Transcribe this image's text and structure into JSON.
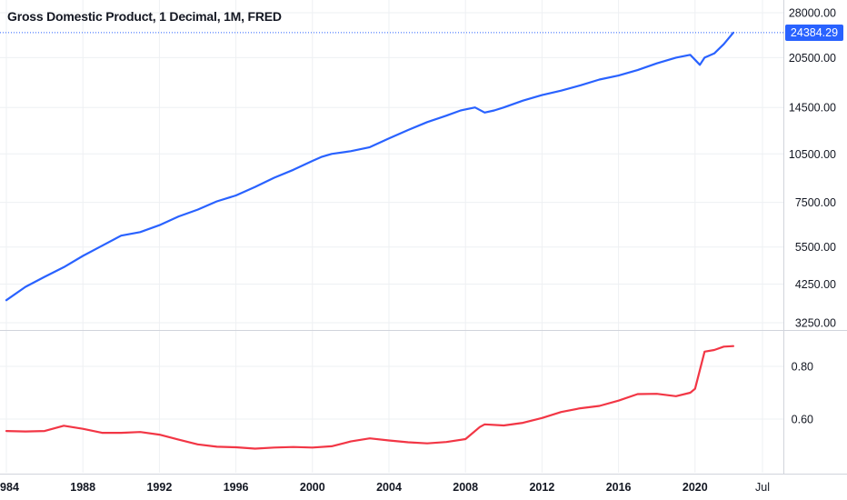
{
  "title": "Gross Domestic Product, 1 Decimal, 1M, FRED",
  "last_value_label": "24384.29",
  "colors": {
    "gdp_line": "#2962ff",
    "ratio_line": "#f23645",
    "grid": "#eef0f3",
    "axis_border": "#d1d4dc",
    "last_value_badge": "#2962ff"
  },
  "chart_data": [
    {
      "type": "line",
      "title": "Gross Domestic Product, 1 Decimal, 1M, FRED",
      "y_scale": "log",
      "ylim": [
        3100,
        30000
      ],
      "y_ticks": [
        "28000.00",
        "20500.00",
        "14500.00",
        "10500.00",
        "7500.00",
        "5500.00",
        "4250.00",
        "3250.00"
      ],
      "x_ticks": [
        "1984",
        "1988",
        "1992",
        "1996",
        "2000",
        "2004",
        "2008",
        "2012",
        "2016",
        "2020",
        "Jul"
      ],
      "xlim": [
        1984.0,
        2025.0
      ],
      "grid": true,
      "series": [
        {
          "x": [
            1984.0,
            1985.0,
            1986.0,
            1987.0,
            1988.0,
            1989.0,
            1990.0,
            1991.0,
            1992.0,
            1993.0,
            1994.0,
            1995.0,
            1996.0,
            1997.0,
            1998.0,
            1999.0,
            2000.0,
            2000.5,
            2001.0,
            2002.0,
            2003.0,
            2004.0,
            2005.0,
            2006.0,
            2007.0,
            2007.75,
            2008.5,
            2009.0,
            2009.5,
            2010.0,
            2011.0,
            2012.0,
            2013.0,
            2014.0,
            2015.0,
            2016.0,
            2017.0,
            2018.0,
            2019.0,
            2019.75,
            2020.25,
            2020.5,
            2021.0,
            2021.5,
            2022.0
          ],
          "values": [
            3800,
            4170,
            4470,
            4780,
            5170,
            5550,
            5950,
            6100,
            6400,
            6800,
            7130,
            7550,
            7870,
            8350,
            8900,
            9400,
            10000,
            10300,
            10500,
            10700,
            11000,
            11700,
            12400,
            13100,
            13700,
            14200,
            14500,
            14000,
            14200,
            14500,
            15200,
            15800,
            16300,
            16900,
            17600,
            18100,
            18800,
            19700,
            20500,
            20900,
            19500,
            20500,
            21100,
            22500,
            24384.29
          ]
        }
      ]
    },
    {
      "type": "line",
      "y_ticks": [
        "0.80",
        "0.60"
      ],
      "ylim": [
        0.45,
        0.95
      ],
      "xlim": [
        1984.0,
        2025.0
      ],
      "grid": true,
      "series": [
        {
          "x": [
            1984.0,
            1985.0,
            1986.0,
            1987.0,
            1988.0,
            1989.0,
            1990.0,
            1991.0,
            1992.0,
            1993.0,
            1994.0,
            1995.0,
            1996.0,
            1997.0,
            1998.0,
            1999.0,
            2000.0,
            2001.0,
            2002.0,
            2003.0,
            2004.0,
            2005.0,
            2006.0,
            2007.0,
            2008.0,
            2008.75,
            2009.0,
            2010.0,
            2011.0,
            2012.0,
            2013.0,
            2014.0,
            2015.0,
            2016.0,
            2017.0,
            2018.0,
            2019.0,
            2019.75,
            2020.0,
            2020.5,
            2021.0,
            2021.5,
            2022.0
          ],
          "values": [
            0.555,
            0.553,
            0.555,
            0.575,
            0.563,
            0.548,
            0.548,
            0.551,
            0.541,
            0.522,
            0.504,
            0.495,
            0.493,
            0.488,
            0.492,
            0.494,
            0.492,
            0.497,
            0.515,
            0.527,
            0.519,
            0.512,
            0.508,
            0.513,
            0.524,
            0.57,
            0.58,
            0.576,
            0.586,
            0.604,
            0.627,
            0.641,
            0.65,
            0.67,
            0.695,
            0.696,
            0.687,
            0.7,
            0.715,
            0.856,
            0.862,
            0.875,
            0.877
          ]
        }
      ]
    }
  ]
}
